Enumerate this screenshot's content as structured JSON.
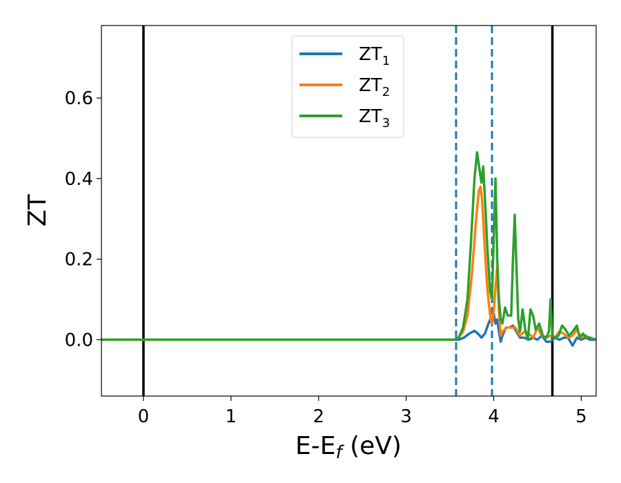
{
  "chart_data": {
    "type": "line",
    "xlabel_main": "E-E",
    "xlabel_sub": "f",
    "xlabel_unit": " (eV)",
    "ylabel": "ZT",
    "xlim": [
      -0.48,
      5.17
    ],
    "ylim": [
      -0.14,
      0.78
    ],
    "xticks": [
      {
        "value": 0,
        "label": "0"
      },
      {
        "value": 1,
        "label": "1"
      },
      {
        "value": 2,
        "label": "2"
      },
      {
        "value": 3,
        "label": "3"
      },
      {
        "value": 4,
        "label": "4"
      },
      {
        "value": 5,
        "label": "5"
      }
    ],
    "yticks": [
      {
        "value": 0.0,
        "label": "0.0"
      },
      {
        "value": 0.2,
        "label": "0.2"
      },
      {
        "value": 0.4,
        "label": "0.4"
      },
      {
        "value": 0.6,
        "label": "0.6"
      }
    ],
    "grid": false,
    "legend_position": "top-center",
    "vlines": [
      {
        "x": 0.0,
        "style": "solid",
        "color": "#000000"
      },
      {
        "x": 4.67,
        "style": "solid",
        "color": "#000000"
      },
      {
        "x": 3.57,
        "style": "dashed",
        "color": "#1f77b4"
      },
      {
        "x": 3.98,
        "style": "dashed",
        "color": "#1f77b4"
      }
    ],
    "series": [
      {
        "name": "ZT",
        "name_sub": "1",
        "color": "#1f77b4",
        "x": [
          -0.48,
          3.5,
          3.6,
          3.66,
          3.72,
          3.78,
          3.82,
          3.86,
          3.9,
          3.94,
          3.96,
          3.98,
          4.0,
          4.02,
          4.04,
          4.06,
          4.08,
          4.1,
          4.14,
          4.18,
          4.22,
          4.26,
          4.3,
          4.35,
          4.4,
          4.45,
          4.5,
          4.55,
          4.6,
          4.65,
          4.7,
          4.75,
          4.8,
          4.85,
          4.9,
          4.95,
          5.0,
          5.05,
          5.1,
          5.17
        ],
        "y": [
          0,
          0,
          0.0,
          0.005,
          0.015,
          0.022,
          0.015,
          0.005,
          0.015,
          0.04,
          0.05,
          0.04,
          0.065,
          0.04,
          0.05,
          0.02,
          -0.005,
          0.01,
          0.03,
          0.03,
          0.035,
          0.02,
          0.005,
          0.005,
          0.0,
          0.005,
          0.0,
          0.01,
          -0.005,
          -0.005,
          0.005,
          0.0,
          0.005,
          0.005,
          -0.015,
          0.005,
          0.0,
          0.005,
          0.0,
          0.0
        ]
      },
      {
        "name": "ZT",
        "name_sub": "2",
        "color": "#ff7f0e",
        "x": [
          -0.48,
          3.55,
          3.6,
          3.65,
          3.7,
          3.75,
          3.8,
          3.83,
          3.85,
          3.87,
          3.9,
          3.93,
          3.96,
          3.98,
          4.0,
          4.02,
          4.04,
          4.06,
          4.08,
          4.1,
          4.15,
          4.2,
          4.25,
          4.3,
          4.35,
          4.4,
          4.45,
          4.5,
          4.55,
          4.6,
          4.65,
          4.7,
          4.75,
          4.8,
          4.85,
          4.9,
          4.95,
          5.0,
          5.05,
          5.1,
          5.17
        ],
        "y": [
          0,
          0,
          0.005,
          0.02,
          0.06,
          0.16,
          0.3,
          0.37,
          0.38,
          0.34,
          0.22,
          0.12,
          0.06,
          0.04,
          0.07,
          0.13,
          0.18,
          0.07,
          0.01,
          0.02,
          0.03,
          0.03,
          0.03,
          0.01,
          0.02,
          0.015,
          0.005,
          0.03,
          0.01,
          0.005,
          0.01,
          0.005,
          0.02,
          0.015,
          0.005,
          0.01,
          0.025,
          0.005,
          0.01,
          0.005,
          0.0
        ]
      },
      {
        "name": "ZT",
        "name_sub": "3",
        "color": "#2ca02c",
        "x": [
          -0.48,
          3.55,
          3.6,
          3.65,
          3.7,
          3.74,
          3.78,
          3.81,
          3.84,
          3.86,
          3.88,
          3.9,
          3.93,
          3.96,
          3.98,
          4.0,
          4.02,
          4.04,
          4.06,
          4.08,
          4.1,
          4.13,
          4.16,
          4.2,
          4.22,
          4.24,
          4.26,
          4.28,
          4.3,
          4.33,
          4.36,
          4.39,
          4.42,
          4.45,
          4.48,
          4.52,
          4.56,
          4.6,
          4.63,
          4.65,
          4.67,
          4.7,
          4.74,
          4.78,
          4.82,
          4.86,
          4.9,
          4.95,
          4.98,
          5.02,
          5.06,
          5.1,
          5.17
        ],
        "y": [
          0,
          0,
          0.005,
          0.03,
          0.1,
          0.24,
          0.4,
          0.465,
          0.42,
          0.39,
          0.43,
          0.35,
          0.22,
          0.12,
          0.1,
          0.25,
          0.4,
          0.2,
          0.1,
          0.05,
          0.04,
          0.08,
          0.06,
          0.06,
          0.2,
          0.31,
          0.18,
          0.05,
          0.02,
          0.075,
          0.025,
          0.0,
          0.075,
          0.06,
          0.025,
          0.04,
          0.01,
          0.005,
          0.02,
          0.1,
          0.01,
          0.005,
          0.01,
          0.035,
          0.025,
          0.01,
          0.02,
          0.035,
          0.005,
          0.015,
          0.005,
          0.005,
          0.0
        ]
      }
    ]
  }
}
